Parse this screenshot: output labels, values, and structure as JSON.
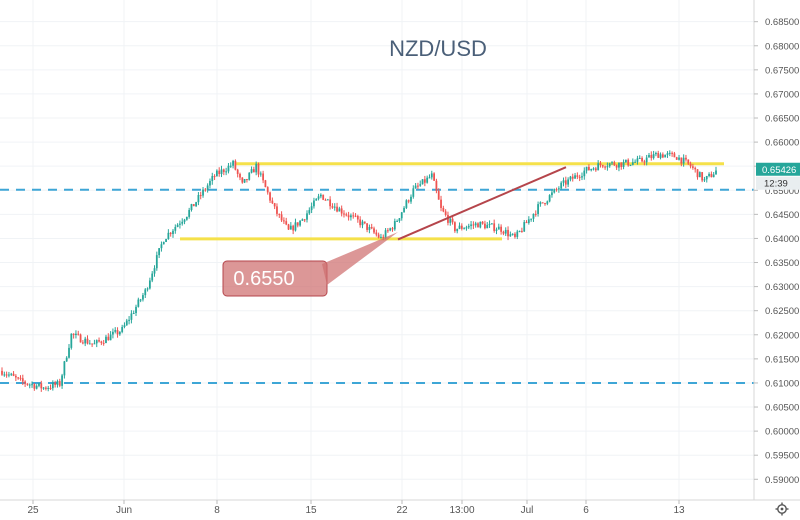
{
  "chart_data": {
    "type": "candlestick",
    "title": "NZD/USD",
    "ylim": [
      0.5857,
      0.6895
    ],
    "y_ticks": [
      "0.68500",
      "0.68000",
      "0.67500",
      "0.67000",
      "0.66500",
      "0.66000",
      "0.65500",
      "0.65000",
      "0.64500",
      "0.64000",
      "0.63500",
      "0.63000",
      "0.62500",
      "0.62000",
      "0.61500",
      "0.61000",
      "0.60500",
      "0.60000",
      "0.59500",
      "0.59000"
    ],
    "x_ticks": [
      "25",
      "Jun",
      "8",
      "15",
      "22",
      "13:00",
      "Jul",
      "6",
      "13"
    ],
    "last_price": "0.65426",
    "countdown": "12:39",
    "annotation": "0.6550",
    "levels": [
      {
        "name": "upper-yellow-line",
        "value": 0.6555,
        "color": "#f5e14a"
      },
      {
        "name": "lower-yellow-line",
        "value": 0.6399,
        "color": "#f5e14a"
      },
      {
        "name": "upper-dashed-line",
        "value": 0.6501,
        "color": "#3ea6d6"
      },
      {
        "name": "lower-dashed-line",
        "value": 0.61,
        "color": "#3ea6d6"
      }
    ],
    "trendline": {
      "from": 0.6398,
      "to": 0.6548,
      "color": "#b5454b"
    },
    "colors": {
      "up": "#26a69a",
      "down": "#ef5350",
      "callout": "#cf6f6f",
      "price_tag": "#26a69a"
    },
    "grid": true,
    "anchors": [
      {
        "i": 0,
        "p": 0.6125
      },
      {
        "i": 8,
        "p": 0.6103
      },
      {
        "i": 18,
        "p": 0.609
      },
      {
        "i": 25,
        "p": 0.6098
      },
      {
        "i": 30,
        "p": 0.62
      },
      {
        "i": 40,
        "p": 0.618
      },
      {
        "i": 52,
        "p": 0.621
      },
      {
        "i": 62,
        "p": 0.629
      },
      {
        "i": 70,
        "p": 0.64
      },
      {
        "i": 80,
        "p": 0.645
      },
      {
        "i": 92,
        "p": 0.653
      },
      {
        "i": 100,
        "p": 0.6555
      },
      {
        "i": 104,
        "p": 0.651
      },
      {
        "i": 110,
        "p": 0.655
      },
      {
        "i": 118,
        "p": 0.646
      },
      {
        "i": 124,
        "p": 0.6415
      },
      {
        "i": 130,
        "p": 0.644
      },
      {
        "i": 138,
        "p": 0.649
      },
      {
        "i": 146,
        "p": 0.646
      },
      {
        "i": 156,
        "p": 0.643
      },
      {
        "i": 164,
        "p": 0.64
      },
      {
        "i": 170,
        "p": 0.643
      },
      {
        "i": 178,
        "p": 0.65
      },
      {
        "i": 186,
        "p": 0.653
      },
      {
        "i": 190,
        "p": 0.646
      },
      {
        "i": 196,
        "p": 0.642
      },
      {
        "i": 206,
        "p": 0.643
      },
      {
        "i": 216,
        "p": 0.642
      },
      {
        "i": 222,
        "p": 0.64
      },
      {
        "i": 232,
        "p": 0.6465
      },
      {
        "i": 242,
        "p": 0.651
      },
      {
        "i": 252,
        "p": 0.654
      },
      {
        "i": 260,
        "p": 0.6555
      },
      {
        "i": 268,
        "p": 0.6555
      },
      {
        "i": 276,
        "p": 0.656
      },
      {
        "i": 284,
        "p": 0.6575
      },
      {
        "i": 292,
        "p": 0.657
      },
      {
        "i": 298,
        "p": 0.655
      },
      {
        "i": 304,
        "p": 0.652
      },
      {
        "i": 309,
        "p": 0.654
      }
    ]
  }
}
